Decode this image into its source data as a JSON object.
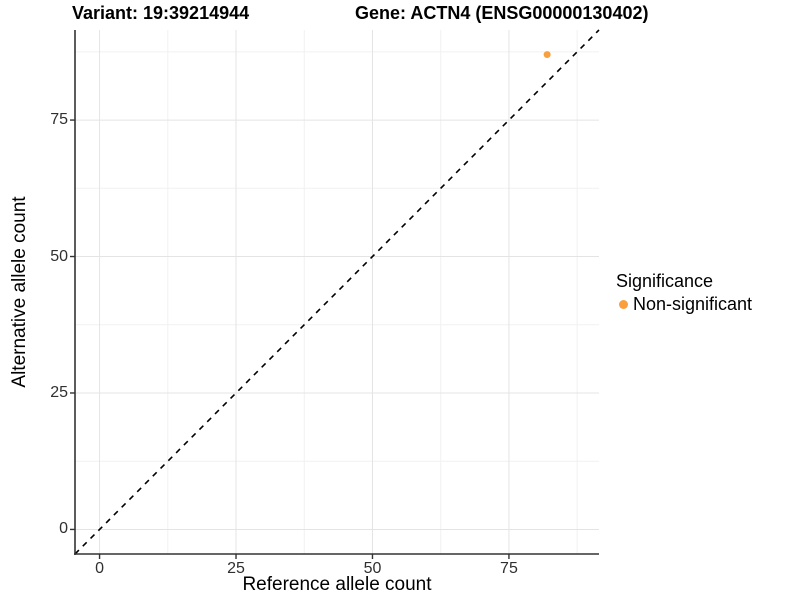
{
  "figure": {
    "title_left": "Variant: 19:39214944",
    "title_right": "Gene: ACTN4 (ENSG00000130402)"
  },
  "axes": {
    "x_label": "Reference allele count",
    "y_label": "Alternative allele count"
  },
  "legend": {
    "title": "Significance",
    "items": [
      {
        "label": "Non-significant",
        "color": "#F9A03C",
        "marker": "dot"
      }
    ]
  },
  "colors": {
    "background": "#FFFFFF",
    "grid_major": "#E4E4E4",
    "grid_minor": "#F1F1F1",
    "axis_line": "#333333",
    "tick_mark": "#333333",
    "tick_text": "#303030",
    "identity_line": "#000000",
    "point": "#F9A03C"
  },
  "chart_data": {
    "type": "scatter",
    "title": "Variant: 19:39214944 | Gene: ACTN4 (ENSG00000130402)",
    "xlabel": "Reference allele count",
    "ylabel": "Alternative allele count",
    "xlim": [
      -4.5,
      91.5
    ],
    "ylim": [
      -4.5,
      91.5
    ],
    "xticks": [
      0,
      25,
      50,
      75
    ],
    "yticks": [
      0,
      25,
      50,
      75
    ],
    "xticks_minor": [
      12.5,
      37.5,
      62.5,
      87.5
    ],
    "yticks_minor": [
      12.5,
      37.5,
      62.5,
      87.5
    ],
    "grid": true,
    "legend_position": "right",
    "series": [
      {
        "name": "Non-significant",
        "color": "#F9A03C",
        "points": [
          {
            "x": 82,
            "y": 87
          }
        ]
      }
    ],
    "identity_line": {
      "style": "dashed",
      "color": "#000000",
      "from": -4.5,
      "to": 91.5
    }
  }
}
